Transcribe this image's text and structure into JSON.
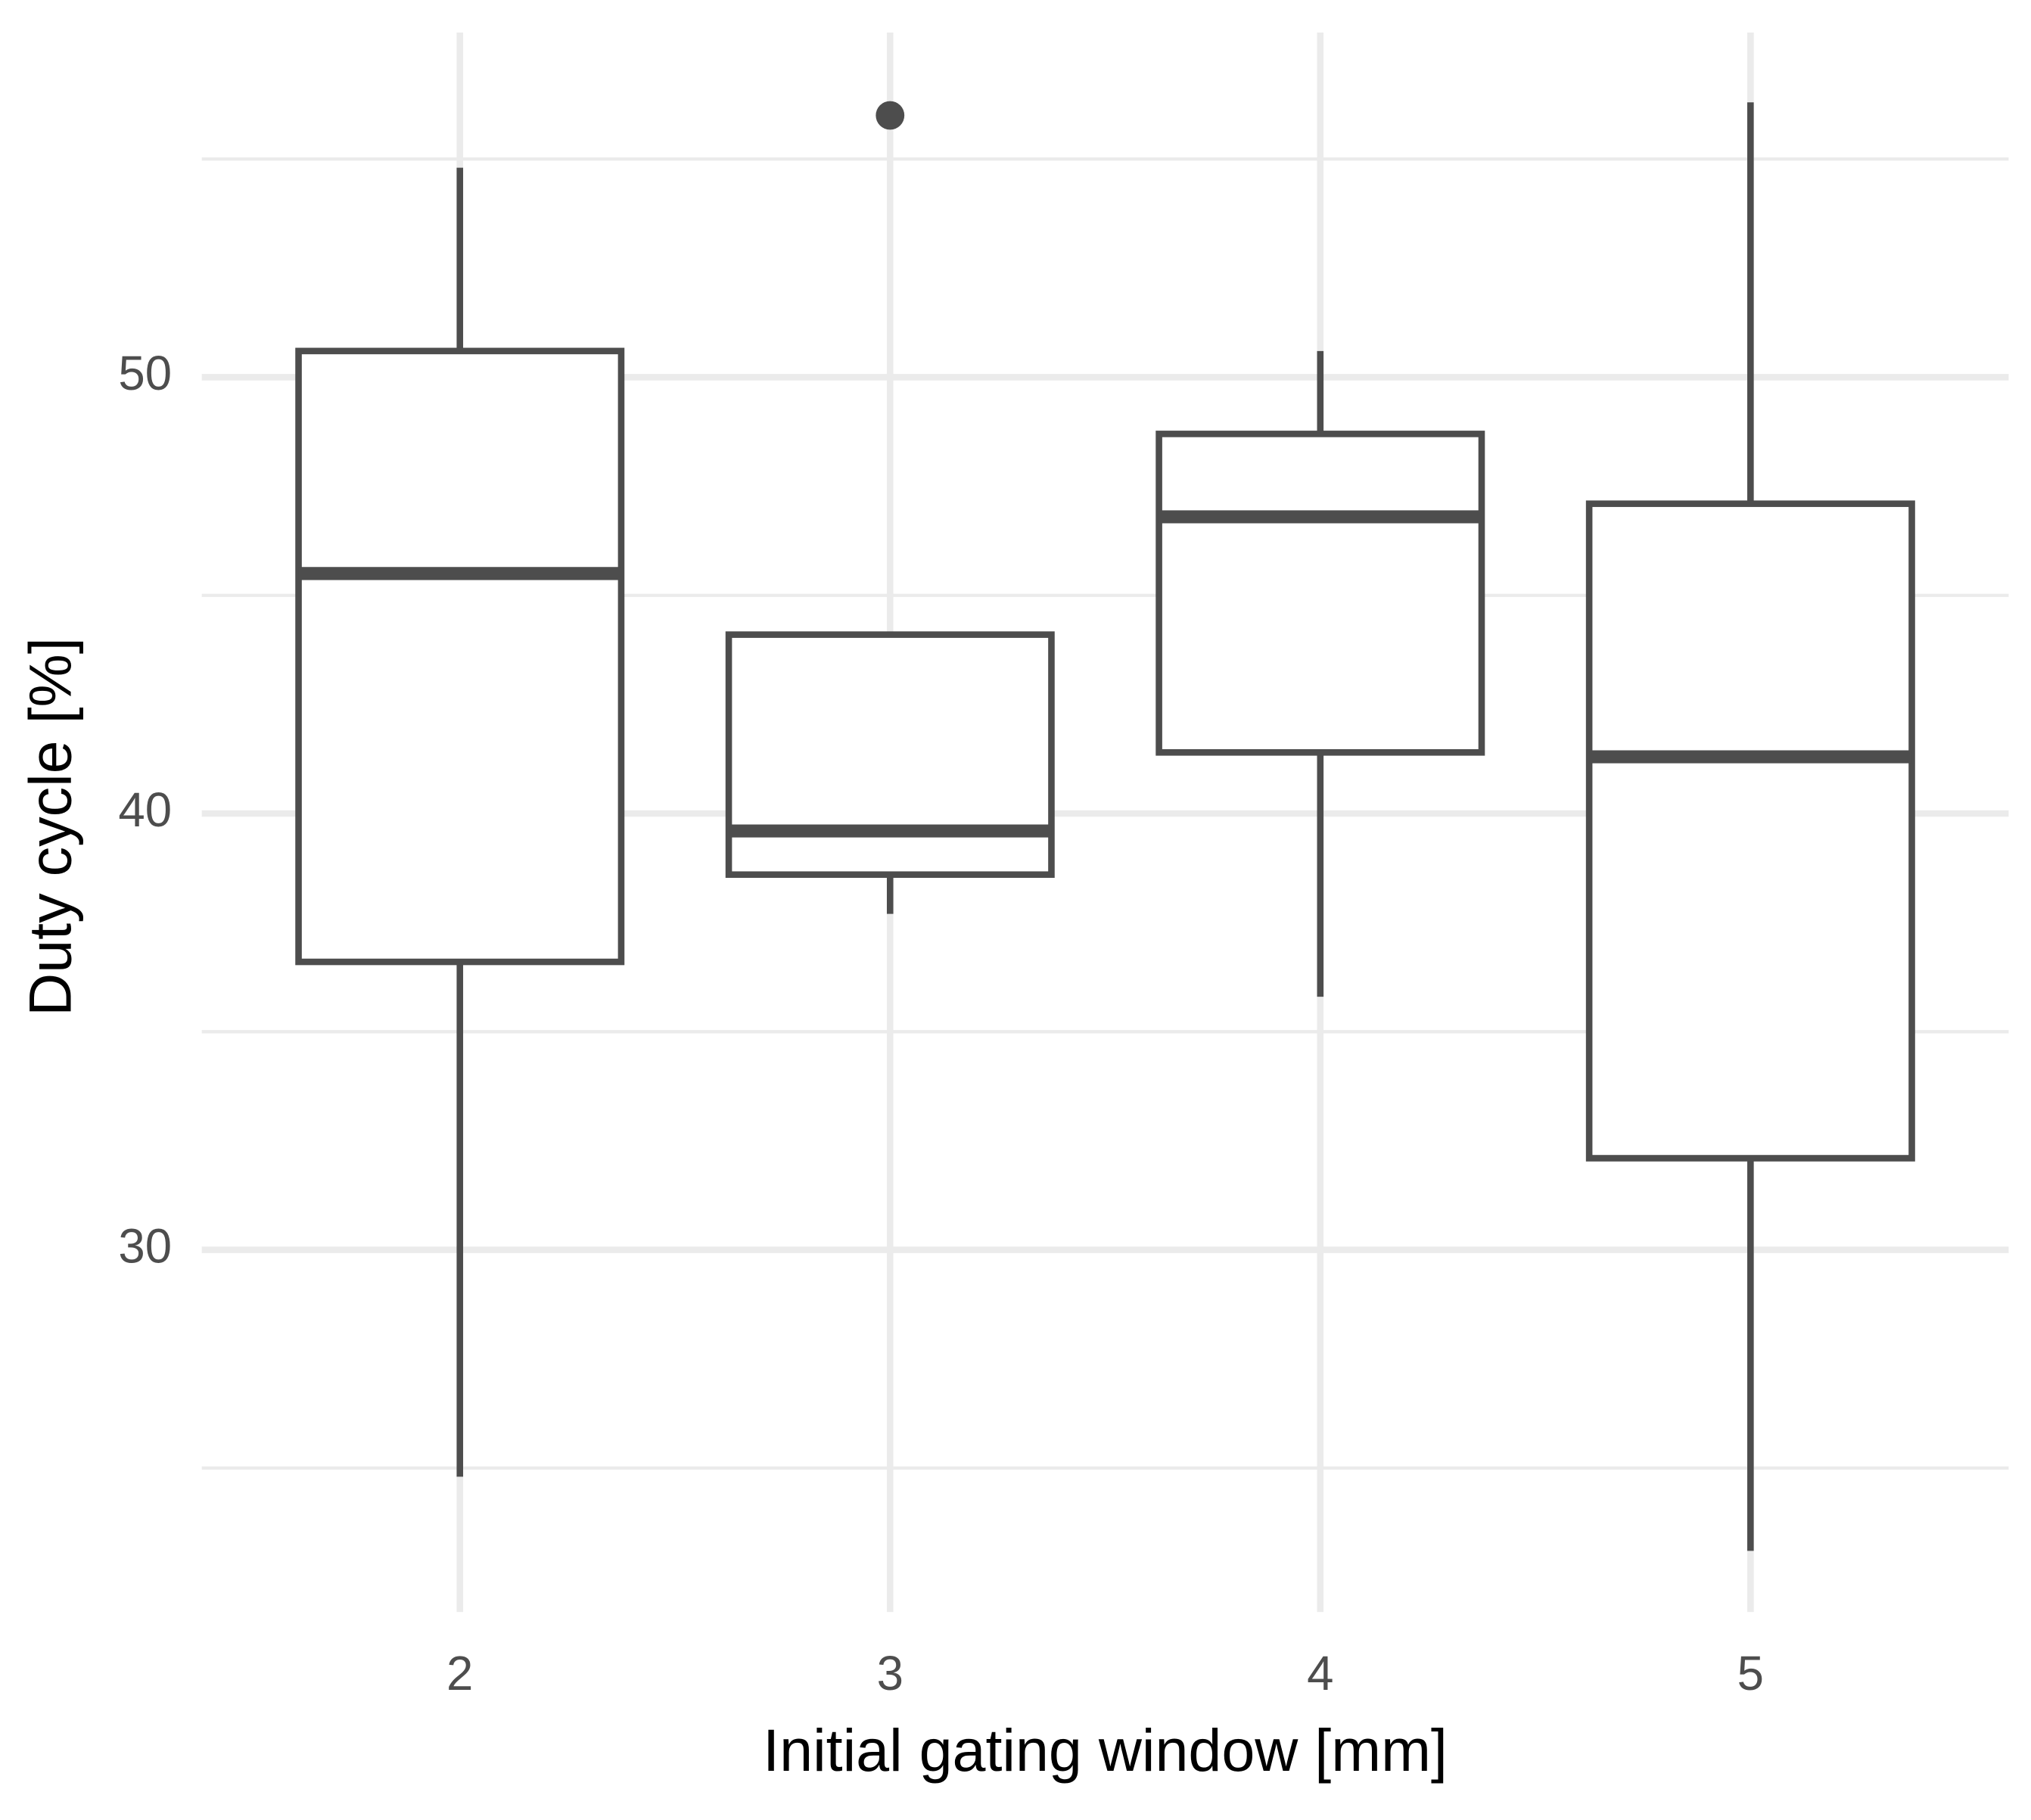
{
  "chart_data": {
    "type": "box",
    "x_label": "Initial gating window [mm]",
    "y_label": "Duty cycle [%]",
    "categories": [
      "2",
      "3",
      "4",
      "5"
    ],
    "boxes": [
      {
        "min": 24.8,
        "q1": 36.6,
        "median": 45.5,
        "q3": 50.6,
        "max": 54.8,
        "outliers": []
      },
      {
        "min": 37.7,
        "q1": 38.6,
        "median": 39.6,
        "q3": 44.1,
        "max": 44.1,
        "outliers": [
          56.0
        ]
      },
      {
        "min": 35.8,
        "q1": 41.4,
        "median": 46.8,
        "q3": 48.7,
        "max": 50.6,
        "outliers": []
      },
      {
        "min": 23.1,
        "q1": 32.1,
        "median": 41.3,
        "q3": 47.1,
        "max": 56.3,
        "outliers": []
      }
    ],
    "color": "#4d4d4d",
    "ylim": [
      21.7,
      57.9
    ],
    "yticks": [
      30,
      40,
      50
    ],
    "grid": true,
    "minor_grid": true
  }
}
